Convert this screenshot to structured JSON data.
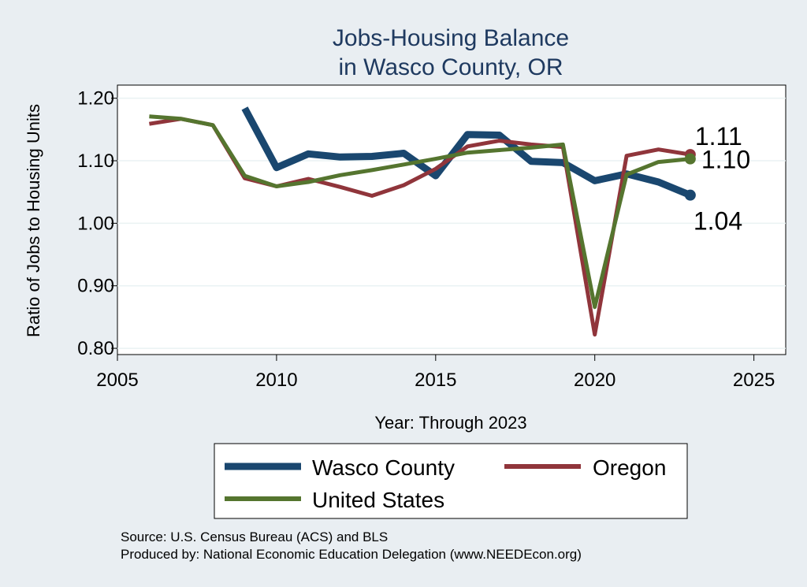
{
  "chart_data": {
    "type": "line",
    "title": [
      "Jobs-Housing Balance",
      "in Wasco County, OR"
    ],
    "xlabel": "Year: Through 2023",
    "ylabel": "Ratio of Jobs to Housing Units",
    "xlim": [
      2005,
      2026
    ],
    "ylim": [
      0.79,
      1.221
    ],
    "xticks": [
      2005,
      2010,
      2015,
      2020,
      2025
    ],
    "yticks": [
      0.8,
      0.9,
      1.0,
      1.1,
      1.2
    ],
    "ytick_labels": [
      "0.80",
      "0.90",
      "1.00",
      "1.10",
      "1.20"
    ],
    "grid": true,
    "legend_position": "bottom",
    "series": [
      {
        "name": "Wasco County",
        "color": "#1a476f",
        "x": [
          2009,
          2010,
          2011,
          2012,
          2013,
          2014,
          2015,
          2016,
          2017,
          2018,
          2019,
          2020,
          2021,
          2022,
          2023
        ],
        "values": [
          1.184,
          1.089,
          1.111,
          1.106,
          1.107,
          1.112,
          1.076,
          1.142,
          1.141,
          1.099,
          1.097,
          1.068,
          1.079,
          1.066,
          1.045
        ],
        "end_label": "1.04"
      },
      {
        "name": "Oregon",
        "color": "#90353b",
        "x": [
          2006,
          2007,
          2008,
          2009,
          2010,
          2011,
          2012,
          2013,
          2014,
          2015,
          2016,
          2017,
          2018,
          2019,
          2020,
          2021,
          2022,
          2023
        ],
        "values": [
          1.159,
          1.167,
          1.157,
          1.072,
          1.059,
          1.071,
          1.058,
          1.044,
          1.061,
          1.087,
          1.123,
          1.132,
          1.126,
          1.122,
          0.822,
          1.108,
          1.118,
          1.11
        ],
        "end_label": "1.11"
      },
      {
        "name": "United States",
        "color": "#55752f",
        "x": [
          2006,
          2007,
          2008,
          2009,
          2010,
          2011,
          2012,
          2013,
          2014,
          2015,
          2016,
          2017,
          2018,
          2019,
          2020,
          2021,
          2022,
          2023
        ],
        "values": [
          1.171,
          1.167,
          1.157,
          1.076,
          1.059,
          1.066,
          1.077,
          1.085,
          1.094,
          1.103,
          1.113,
          1.117,
          1.121,
          1.126,
          0.866,
          1.078,
          1.098,
          1.103
        ],
        "end_label": "1.10"
      }
    ],
    "source_lines": [
      "Source: U.S. Census Bureau (ACS) and BLS",
      "Produced by: National Economic Education Delegation (www.NEEDEcon.org)"
    ]
  }
}
